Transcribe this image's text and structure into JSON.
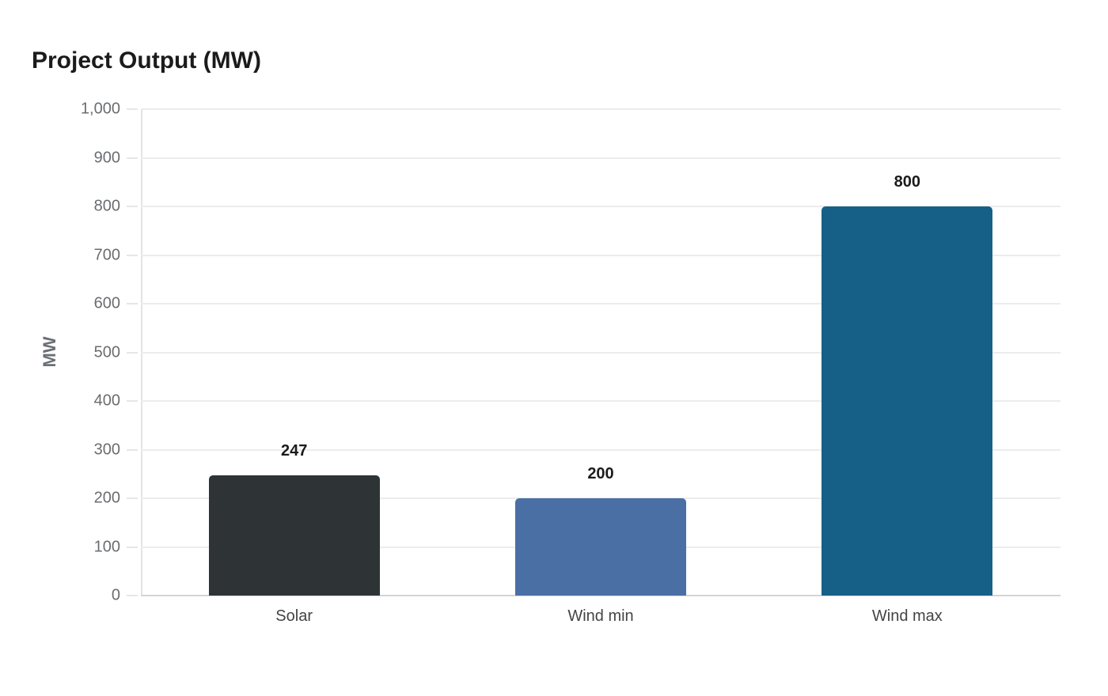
{
  "header": {
    "title": "Project Output (MW)"
  },
  "axes": {
    "ylabel": "MW",
    "yticks": [
      "0",
      "100",
      "200",
      "300",
      "400",
      "500",
      "600",
      "700",
      "800",
      "900",
      "1,000"
    ]
  },
  "colors": {
    "Solar": "#2e3436",
    "Wind min": "#4a6fa5",
    "Wind max": "#166088"
  },
  "chart_data": {
    "type": "bar",
    "title": "Project Output (MW)",
    "xlabel": "",
    "ylabel": "MW",
    "categories": [
      "Solar",
      "Wind min",
      "Wind max"
    ],
    "values": [
      247,
      200,
      800
    ],
    "value_labels": [
      "247",
      "200",
      "800"
    ],
    "colors": [
      "#2e3436",
      "#4a6fa5",
      "#166088"
    ],
    "ylim": [
      0,
      1000
    ],
    "yticks": [
      0,
      100,
      200,
      300,
      400,
      500,
      600,
      700,
      800,
      900,
      1000
    ],
    "grid": true,
    "legend": null
  }
}
